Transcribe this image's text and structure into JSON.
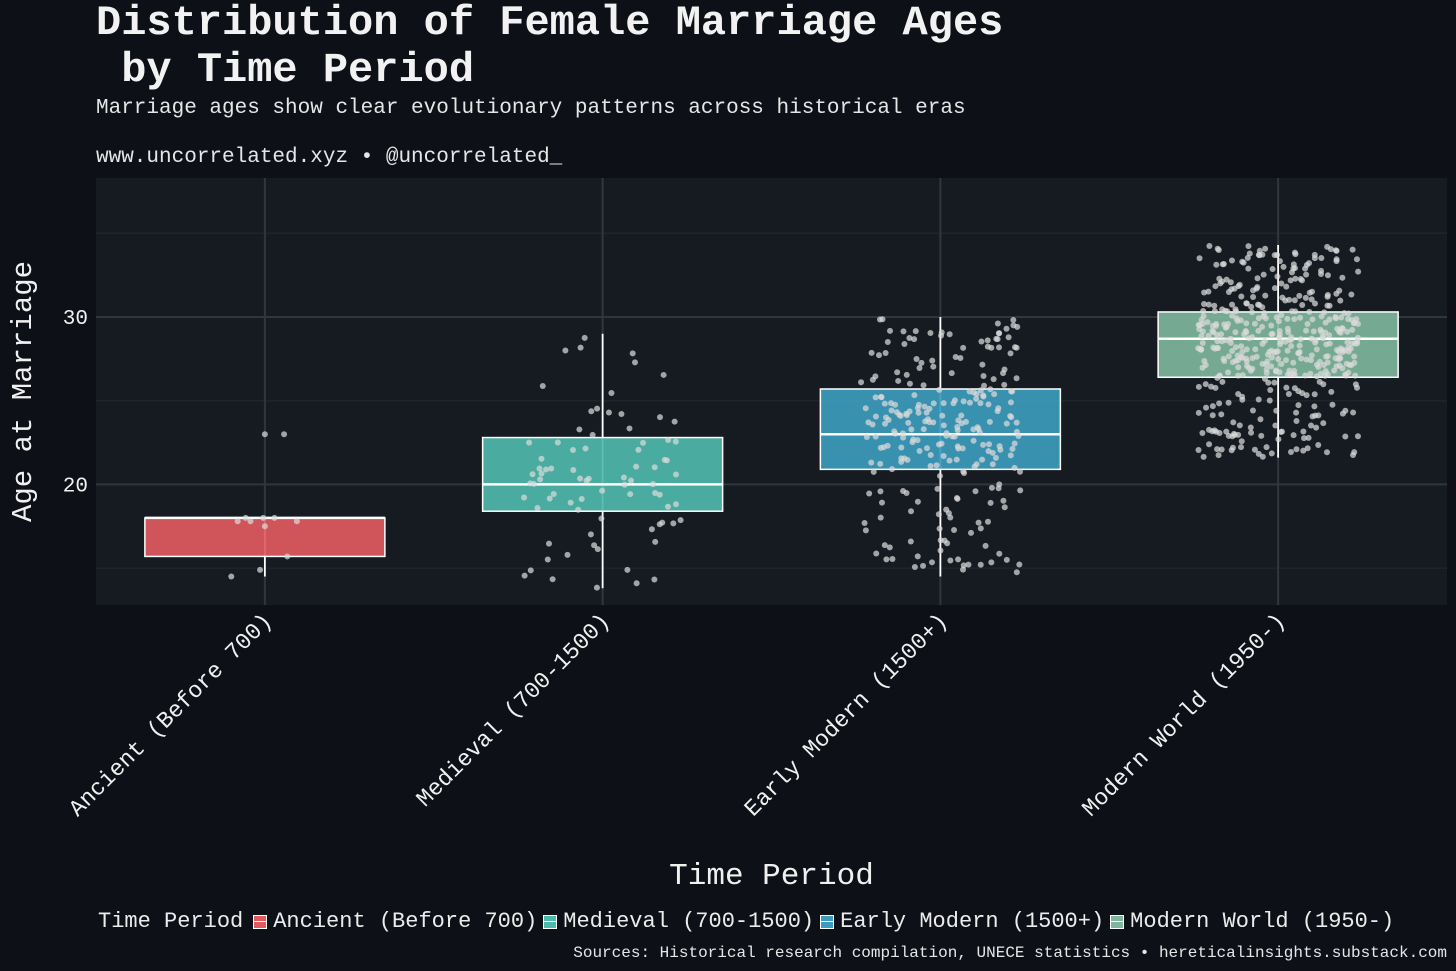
{
  "header": {
    "title": "Distribution of Female Marriage Ages\n by Time Period",
    "subtitle": "Marriage ages show clear evolutionary patterns across historical eras",
    "site": "www.uncorrelated.xyz • @uncorrelated_"
  },
  "footer": {
    "sources": "Sources: Historical research compilation, UNECE statistics • hereticalinsights.substack.com"
  },
  "colors": {
    "background": "#0d1117",
    "panel": "#161b22",
    "grid_major": "#30363d",
    "grid_minor": "#1f242b",
    "text": "#f0f0f0",
    "ancient": "#e05a5f",
    "medieval": "#4fb8ad",
    "early_modern": "#3d9bbd",
    "modern_world": "#7fb59c",
    "points": "#d9d9d9"
  },
  "chart_data": {
    "type": "box",
    "xlabel": "Time Period",
    "ylabel": "Age at Marriage",
    "ylim": [
      12.8,
      38.3
    ],
    "yticks": [
      20,
      30
    ],
    "grid": true,
    "legend": {
      "title": "Time Period",
      "position": "bottom",
      "entries": [
        "Ancient (Before 700)",
        "Medieval (700-1500)",
        "Early Modern (1500+)",
        "Modern World (1950-)"
      ]
    },
    "categories": [
      "Ancient (Before 700)",
      "Medieval (700-1500)",
      "Early Modern (1500+)",
      "Modern World (1950-)"
    ],
    "boxes": [
      {
        "name": "Ancient (Before 700)",
        "color": "#e05a5f",
        "whisker_low": 14.5,
        "q1": 15.7,
        "median": 18.0,
        "q3": 18.0,
        "whisker_high": 18.0,
        "points": [
          [
            -0.21,
            14.5
          ],
          [
            -0.03,
            14.9
          ],
          [
            -0.17,
            17.8
          ],
          [
            -0.09,
            17.8
          ],
          [
            -0.01,
            18.0
          ],
          [
            0.06,
            18.0
          ],
          [
            0.2,
            17.8
          ],
          [
            0.0,
            17.5
          ],
          [
            0.14,
            15.7
          ],
          [
            0.0,
            23.0
          ],
          [
            0.12,
            23.0
          ],
          [
            -0.12,
            18.0
          ]
        ]
      },
      {
        "name": "Medieval (700-1500)",
        "color": "#4fb8ad",
        "whisker_low": 13.8,
        "q1": 18.4,
        "median": 20.0,
        "q3": 22.8,
        "whisker_high": 29.0,
        "n_points": 80,
        "seed": 2
      },
      {
        "name": "Early Modern (1500+)",
        "color": "#3d9bbd",
        "whisker_low": 14.5,
        "q1": 20.9,
        "median": 23.0,
        "q3": 25.7,
        "whisker_high": 30.0,
        "n_points": 250,
        "seed": 3
      },
      {
        "name": "Modern World (1950-)",
        "color": "#7fb59c",
        "whisker_low": 21.6,
        "q1": 26.4,
        "median": 28.7,
        "q3": 30.3,
        "whisker_high": 34.3,
        "n_points": 450,
        "seed": 4
      }
    ]
  }
}
